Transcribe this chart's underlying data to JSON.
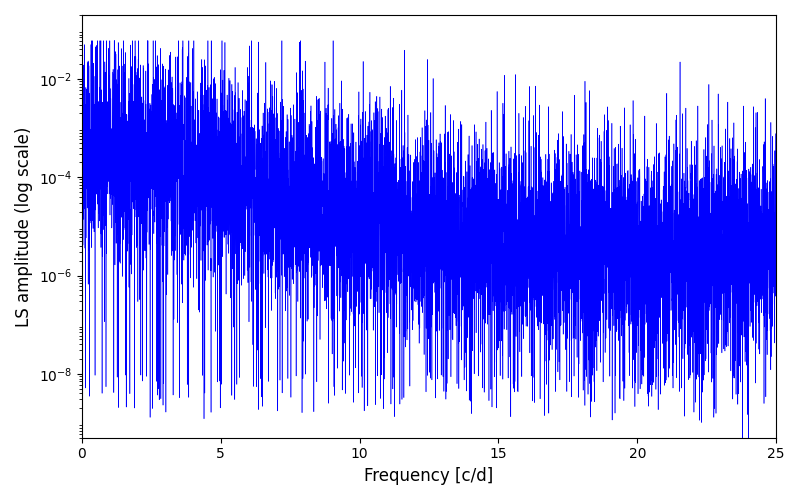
{
  "xlabel": "Frequency [c/d]",
  "ylabel": "LS amplitude (log scale)",
  "xlim": [
    0,
    25
  ],
  "ylim": [
    5e-10,
    0.2
  ],
  "line_color": "#0000ff",
  "background_color": "#ffffff",
  "freq_max": 25.0,
  "n_points": 8000,
  "seed": 42,
  "xlabel_fontsize": 12,
  "ylabel_fontsize": 12,
  "linewidth": 0.4,
  "yticks": [
    1e-08,
    1e-06,
    0.0001,
    0.01
  ],
  "figsize": [
    8.0,
    5.0
  ],
  "dpi": 100
}
